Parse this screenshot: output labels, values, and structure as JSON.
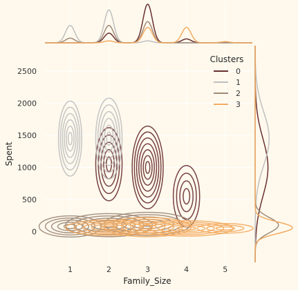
{
  "chart_data": {
    "type": "kde-joint",
    "title": "",
    "xlabel": "Family_Size",
    "ylabel": "Spent",
    "xlim": [
      0.35,
      5.7
    ],
    "ylim": [
      -480,
      2900
    ],
    "xticks": [
      1,
      2,
      3,
      4,
      5
    ],
    "yticks": [
      0,
      500,
      1000,
      1500,
      2000,
      2500
    ],
    "grid": true,
    "legend": {
      "title": "Clusters",
      "placement": "top-right",
      "entries": [
        "0",
        "1",
        "2",
        "3"
      ]
    },
    "colors": {
      "0": "#682F2F",
      "1": "#BFBFBF",
      "2": "#9F8A78",
      "3": "#F3AB60",
      "background": "#FFF9ED",
      "grid": "#FFFFFF"
    },
    "series": [
      {
        "name": "0",
        "blobs": [
          {
            "family_size": 2,
            "spent_center": 1050,
            "spent_spread": 380,
            "size_spread": 0.085,
            "rings": 5
          },
          {
            "family_size": 3,
            "spent_center": 1000,
            "spent_spread": 430,
            "size_spread": 0.1,
            "rings": 7
          },
          {
            "family_size": 4,
            "spent_center": 550,
            "spent_spread": 320,
            "size_spread": 0.085,
            "rings": 4
          }
        ]
      },
      {
        "name": "1",
        "blobs": [
          {
            "family_size": 1,
            "spent_center": 1450,
            "spent_spread": 390,
            "size_spread": 0.075,
            "rings": 6
          },
          {
            "family_size": 2,
            "spent_center": 1450,
            "spent_spread": 420,
            "size_spread": 0.085,
            "rings": 6
          }
        ]
      },
      {
        "name": "2",
        "blobs": [
          {
            "family_size": 1,
            "spent_center": 80,
            "spent_spread": 110,
            "size_spread": 0.2,
            "rings": 5
          },
          {
            "family_size": 2,
            "spent_center": 100,
            "spent_spread": 120,
            "size_spread": 0.28,
            "rings": 5
          },
          {
            "family_size": 3,
            "spent_center": 120,
            "spent_spread": 120,
            "size_spread": 0.28,
            "rings": 5
          }
        ]
      },
      {
        "name": "3",
        "blobs": [
          {
            "family_size": 2,
            "spent_center": 60,
            "spent_spread": 80,
            "size_spread": 0.28,
            "rings": 5
          },
          {
            "family_size": 3,
            "spent_center": 70,
            "spent_spread": 100,
            "size_spread": 0.28,
            "rings": 5
          },
          {
            "family_size": 4,
            "spent_center": 50,
            "spent_spread": 80,
            "size_spread": 0.3,
            "rings": 5
          },
          {
            "family_size": 5,
            "spent_center": 50,
            "spent_spread": 50,
            "size_spread": 0.18,
            "rings": 3
          }
        ]
      }
    ],
    "marginal_family_size": {
      "0": [
        0,
        0.25,
        1.0,
        0.1,
        0.02
      ],
      "1": [
        0.45,
        0.85,
        0.05,
        0,
        0
      ],
      "2": [
        0.12,
        0.45,
        0.55,
        0,
        0
      ],
      "3": [
        0,
        0.05,
        0.4,
        0.4,
        0.03
      ]
    },
    "marginal_spent": {
      "0": [
        {
          "center": 1000,
          "spread": 450,
          "weight": 0.55
        }
      ],
      "1": [
        {
          "center": 1450,
          "spread": 420,
          "weight": 0.6
        }
      ],
      "2": [
        {
          "center": 100,
          "spread": 120,
          "weight": 1.0
        }
      ],
      "3": [
        {
          "center": 60,
          "spread": 90,
          "weight": 1.6
        }
      ]
    }
  }
}
